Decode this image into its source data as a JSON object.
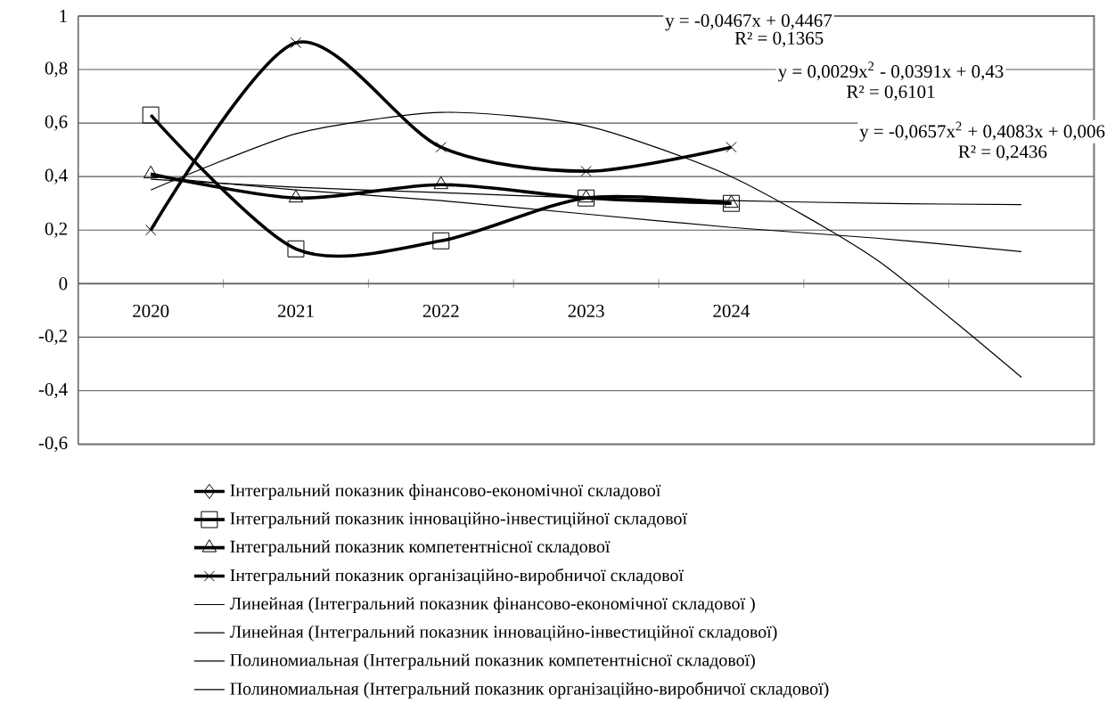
{
  "chart_data": {
    "type": "line",
    "categories": [
      "2020",
      "2021",
      "2022",
      "2023",
      "2024",
      null,
      null
    ],
    "ylim": [
      -0.6,
      1
    ],
    "yticks": [
      {
        "value": -0.6,
        "label": "-0,6"
      },
      {
        "value": -0.4,
        "label": "-0,4"
      },
      {
        "value": -0.2,
        "label": "-0,2"
      },
      {
        "value": 0,
        "label": "0"
      },
      {
        "value": 0.2,
        "label": "0,2"
      },
      {
        "value": 0.4,
        "label": "0,4"
      },
      {
        "value": 0.6,
        "label": "0,6"
      },
      {
        "value": 0.8,
        "label": "0,8"
      },
      {
        "value": 1,
        "label": "1"
      }
    ],
    "grid": "y",
    "legend": "bottom",
    "series": [
      {
        "name": "Інтегральний показник фінансово-економічної складової",
        "color": "#000000",
        "marker": "diamond",
        "values": [
          null,
          null,
          null,
          null,
          null,
          null,
          null
        ]
      },
      {
        "name": "Інтегральний показник інноваційно-інвестиційної складової",
        "color": "#000000",
        "marker": "square",
        "values": [
          0.63,
          0.13,
          0.16,
          0.32,
          0.3,
          null,
          null
        ]
      },
      {
        "name": "Інтегральний показник компетентнісної складової",
        "color": "#000000",
        "marker": "triangle",
        "values": [
          0.41,
          0.32,
          0.37,
          0.32,
          0.3,
          null,
          null
        ]
      },
      {
        "name": "Інтегральний показник організаційно-виробничої складової",
        "color": "#000000",
        "marker": "cross",
        "values": [
          0.2,
          0.9,
          0.51,
          0.42,
          0.51,
          null,
          null
        ]
      },
      {
        "name": "Линейная (Інтегральний показник фінансово-економічної складової )",
        "type": "line",
        "color": "#000000",
        "marker": "none",
        "values": [
          null,
          null,
          null,
          null,
          null,
          null,
          null
        ]
      },
      {
        "name": "Линейная (Інтегральний показник інноваційно-інвестиційної складової)",
        "type": "line",
        "color": "#000000",
        "marker": "none",
        "values": [
          0.4,
          0.35,
          0.31,
          0.26,
          0.21,
          0.17,
          0.12
        ]
      },
      {
        "name": "Полиномиальная (Інтегральний показник компетентнісної складової)",
        "type": "line",
        "color": "#000000",
        "marker": "none",
        "values": [
          0.39,
          0.36,
          0.34,
          0.32,
          0.31,
          0.3,
          0.295
        ]
      },
      {
        "name": "Полиномиальная (Інтегральний показник організаційно-виробничої складової)",
        "type": "line",
        "color": "#000000",
        "marker": "none",
        "values": [
          0.35,
          0.56,
          0.64,
          0.59,
          0.4,
          0.09,
          -0.35
        ]
      }
    ],
    "annotations": [
      "y = -0,0467x + 0,4467",
      "R² = 0,1365",
      "y = 0,0029x$^{2}$ - 0,0391x + 0,43",
      "R² = 0,6101",
      "y = -0,0657x$^{2}$ + 0,4083x + 0,006",
      "R² = 0,2436"
    ]
  }
}
